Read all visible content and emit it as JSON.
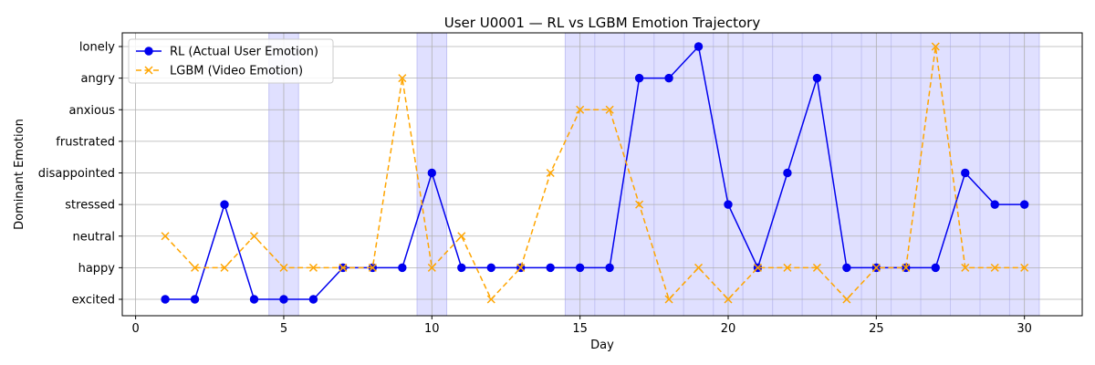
{
  "chart_data": {
    "type": "line",
    "title": "User U0001 — RL vs LGBM Emotion Trajectory",
    "xlabel": "Day",
    "ylabel": "Dominant Emotion",
    "xlim": [
      -0.45,
      31.95
    ],
    "x_ticks": [
      0,
      5,
      10,
      15,
      20,
      25,
      30
    ],
    "y_categories": [
      "excited",
      "happy",
      "neutral",
      "stressed",
      "disappointed",
      "frustrated",
      "anxious",
      "angry",
      "lonely"
    ],
    "grid": true,
    "legend_position": "top-left",
    "shaded_days": [
      5,
      10,
      15,
      16,
      17,
      18,
      19,
      20,
      21,
      22,
      23,
      24,
      25,
      26,
      27,
      28,
      29,
      30
    ],
    "shade_color": "#e0e0ff",
    "x": [
      1,
      2,
      3,
      4,
      5,
      6,
      7,
      8,
      9,
      10,
      11,
      12,
      13,
      14,
      15,
      16,
      17,
      18,
      19,
      20,
      21,
      22,
      23,
      24,
      25,
      26,
      27,
      28,
      29,
      30
    ],
    "series": [
      {
        "name": "RL (Actual User Emotion)",
        "color": "#0000ee",
        "marker": "circle",
        "line_style": "solid",
        "values": [
          "excited",
          "excited",
          "stressed",
          "excited",
          "excited",
          "excited",
          "happy",
          "happy",
          "happy",
          "disappointed",
          "happy",
          "happy",
          "happy",
          "happy",
          "happy",
          "happy",
          "angry",
          "angry",
          "lonely",
          "stressed",
          "happy",
          "disappointed",
          "angry",
          "happy",
          "happy",
          "happy",
          "happy",
          "disappointed",
          "stressed",
          "stressed"
        ]
      },
      {
        "name": "LGBM (Video Emotion)",
        "color": "#ffa500",
        "marker": "x",
        "line_style": "dashed",
        "values": [
          "neutral",
          "happy",
          "happy",
          "neutral",
          "happy",
          "happy",
          "happy",
          "happy",
          "angry",
          "happy",
          "neutral",
          "excited",
          "happy",
          "disappointed",
          "anxious",
          "anxious",
          "stressed",
          "excited",
          "happy",
          "excited",
          "happy",
          "happy",
          "happy",
          "excited",
          "happy",
          "happy",
          "lonely",
          "happy",
          "happy",
          "happy"
        ]
      }
    ]
  }
}
